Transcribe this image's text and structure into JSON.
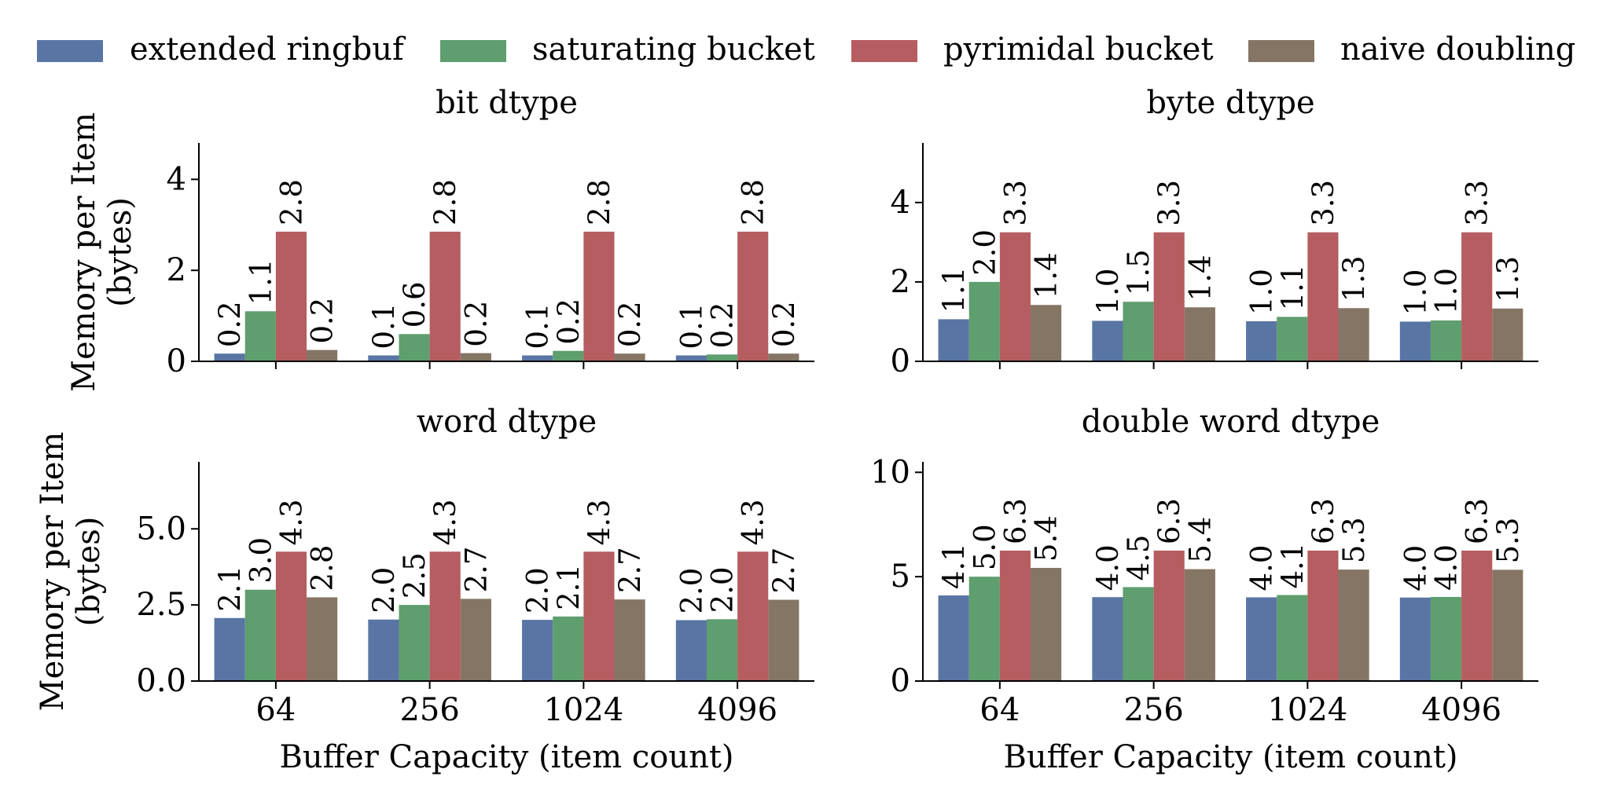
{
  "legend": [
    {
      "name": "extended ringbuf",
      "color": "#5975A4"
    },
    {
      "name": "saturating bucket",
      "color": "#5F9E6E"
    },
    {
      "name": "pyrimidal bucket",
      "color": "#B55D60"
    },
    {
      "name": "naive doubling",
      "color": "#857564"
    }
  ],
  "chart_data": [
    {
      "type": "bar",
      "title": "bit dtype",
      "xlabel": "",
      "ylabel": "Memory per Item\n(bytes)",
      "categories": [
        "64",
        "256",
        "1024",
        "4096"
      ],
      "ylim": [
        0,
        4.8
      ],
      "yticks": [
        0,
        2,
        4
      ],
      "ytick_labels": [
        "0",
        "2",
        "4"
      ],
      "series": [
        {
          "name": "extended ringbuf",
          "values": [
            0.17,
            0.13,
            0.13,
            0.13
          ],
          "labels": [
            "0.2",
            "0.1",
            "0.1",
            "0.1"
          ]
        },
        {
          "name": "saturating bucket",
          "values": [
            1.1,
            0.6,
            0.23,
            0.15
          ],
          "labels": [
            "1.1",
            "0.6",
            "0.2",
            "0.2"
          ]
        },
        {
          "name": "pyrimidal bucket",
          "values": [
            2.85,
            2.85,
            2.85,
            2.85
          ],
          "labels": [
            "2.8",
            "2.8",
            "2.8",
            "2.8"
          ]
        },
        {
          "name": "naive doubling",
          "values": [
            0.25,
            0.18,
            0.17,
            0.17
          ],
          "labels": [
            "0.2",
            "0.2",
            "0.2",
            "0.2"
          ]
        }
      ],
      "grid": false
    },
    {
      "type": "bar",
      "title": "byte dtype",
      "xlabel": "",
      "ylabel": "",
      "categories": [
        "64",
        "256",
        "1024",
        "4096"
      ],
      "ylim": [
        0,
        5.5
      ],
      "yticks": [
        0,
        2,
        4
      ],
      "ytick_labels": [
        "0",
        "2",
        "4"
      ],
      "series": [
        {
          "name": "extended ringbuf",
          "values": [
            1.06,
            1.02,
            1.01,
            1.0
          ],
          "labels": [
            "1.1",
            "1.0",
            "1.0",
            "1.0"
          ]
        },
        {
          "name": "saturating bucket",
          "values": [
            2.0,
            1.5,
            1.12,
            1.03
          ],
          "labels": [
            "2.0",
            "1.5",
            "1.1",
            "1.0"
          ]
        },
        {
          "name": "pyrimidal bucket",
          "values": [
            3.25,
            3.25,
            3.25,
            3.25
          ],
          "labels": [
            "3.3",
            "3.3",
            "3.3",
            "3.3"
          ]
        },
        {
          "name": "naive doubling",
          "values": [
            1.42,
            1.36,
            1.34,
            1.33
          ],
          "labels": [
            "1.4",
            "1.4",
            "1.3",
            "1.3"
          ]
        }
      ],
      "grid": false
    },
    {
      "type": "bar",
      "title": "word dtype",
      "xlabel": "Buffer Capacity (item count)",
      "ylabel": "Memory per Item\n(bytes)",
      "categories": [
        "64",
        "256",
        "1024",
        "4096"
      ],
      "ylim": [
        0,
        7.2
      ],
      "yticks": [
        0,
        2.5,
        5.0
      ],
      "ytick_labels": [
        "0.0",
        "2.5",
        "5.0"
      ],
      "series": [
        {
          "name": "extended ringbuf",
          "values": [
            2.07,
            2.02,
            2.01,
            2.0
          ],
          "labels": [
            "2.1",
            "2.0",
            "2.0",
            "2.0"
          ]
        },
        {
          "name": "saturating bucket",
          "values": [
            3.0,
            2.5,
            2.12,
            2.03
          ],
          "labels": [
            "3.0",
            "2.5",
            "2.1",
            "2.0"
          ]
        },
        {
          "name": "pyrimidal bucket",
          "values": [
            4.25,
            4.25,
            4.25,
            4.25
          ],
          "labels": [
            "4.3",
            "4.3",
            "4.3",
            "4.3"
          ]
        },
        {
          "name": "naive doubling",
          "values": [
            2.75,
            2.7,
            2.68,
            2.67
          ],
          "labels": [
            "2.8",
            "2.7",
            "2.7",
            "2.7"
          ]
        }
      ],
      "grid": false
    },
    {
      "type": "bar",
      "title": "double word dtype",
      "xlabel": "Buffer Capacity (item count)",
      "ylabel": "",
      "categories": [
        "64",
        "256",
        "1024",
        "4096"
      ],
      "ylim": [
        0,
        10.5
      ],
      "yticks": [
        0,
        5,
        10
      ],
      "ytick_labels": [
        "0",
        "5",
        "10"
      ],
      "series": [
        {
          "name": "extended ringbuf",
          "values": [
            4.1,
            4.02,
            4.01,
            4.0
          ],
          "labels": [
            "4.1",
            "4.0",
            "4.0",
            "4.0"
          ]
        },
        {
          "name": "saturating bucket",
          "values": [
            5.0,
            4.5,
            4.12,
            4.03
          ],
          "labels": [
            "5.0",
            "4.5",
            "4.1",
            "4.0"
          ]
        },
        {
          "name": "pyrimidal bucket",
          "values": [
            6.25,
            6.25,
            6.25,
            6.25
          ],
          "labels": [
            "6.3",
            "6.3",
            "6.3",
            "6.3"
          ]
        },
        {
          "name": "naive doubling",
          "values": [
            5.42,
            5.36,
            5.34,
            5.33
          ],
          "labels": [
            "5.4",
            "5.4",
            "5.3",
            "5.3"
          ]
        }
      ],
      "grid": false
    }
  ]
}
